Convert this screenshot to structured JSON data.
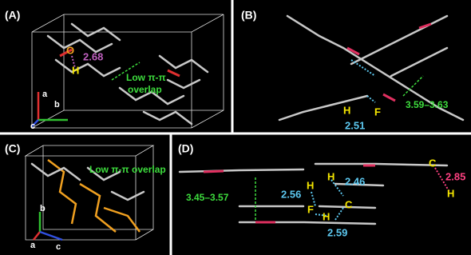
{
  "panels": [
    {
      "label": "(A)",
      "annotations": [
        "O",
        "2.68",
        "H",
        "Low π-π",
        "overlap"
      ],
      "axes": [
        "a",
        "b",
        "c"
      ]
    },
    {
      "label": "(B)",
      "annotations": [
        "H",
        "F",
        "2.51",
        "3.59–3.63"
      ]
    },
    {
      "label": "(C)",
      "annotations": [
        "Low π-π overlap"
      ],
      "axes": [
        "b",
        "a",
        "c"
      ]
    },
    {
      "label": "(D)",
      "annotations": [
        "H",
        "2.46",
        "H",
        "2.56",
        "F",
        "H",
        "C",
        "2.59",
        "3.45–3.57",
        "C",
        "2.85",
        "H"
      ]
    }
  ]
}
